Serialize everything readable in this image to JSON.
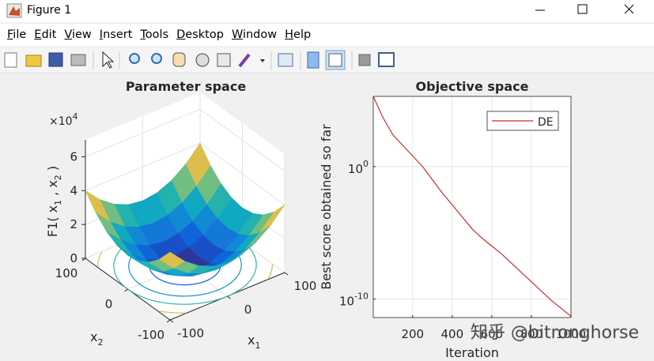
{
  "window": {
    "title": "Figure 1",
    "menu": [
      "File",
      "Edit",
      "View",
      "Insert",
      "Tools",
      "Desktop",
      "Window",
      "Help"
    ]
  },
  "chart_data": [
    {
      "type": "surface3d",
      "title": "Parameter space",
      "xlabel": [
        "x",
        "1"
      ],
      "ylabel": [
        "x",
        "2"
      ],
      "zlabel": [
        "F1( x",
        "1",
        " , x",
        "2",
        " )"
      ],
      "xlim": [
        -100,
        100
      ],
      "ylim": [
        -100,
        100
      ],
      "zlim": [
        0,
        70000
      ],
      "xticks": [
        -100,
        0,
        100
      ],
      "yticks": [
        -100,
        0,
        100
      ],
      "zticks": [
        0,
        {
          "value": 20000,
          "label": "2"
        },
        {
          "value": 40000,
          "label": "4"
        },
        {
          "value": 60000,
          "label": "6"
        }
      ],
      "zscale": [
        "×10",
        "4"
      ],
      "grid": true,
      "x": [
        -100,
        -75,
        -50,
        -25,
        0,
        25,
        50,
        75,
        100
      ],
      "y": [
        -100,
        -75,
        -50,
        -25,
        0,
        25,
        50,
        75,
        100
      ],
      "z": [
        [
          40000,
          31250,
          25000,
          21250,
          20000,
          21250,
          25000,
          31250,
          40000
        ],
        [
          31250,
          22500,
          16250,
          12500,
          11250,
          12500,
          16250,
          22500,
          31250
        ],
        [
          25000,
          16250,
          10000,
          6250,
          5000,
          6250,
          10000,
          16250,
          25000
        ],
        [
          21250,
          12500,
          6250,
          2500,
          1250,
          2500,
          6250,
          12500,
          21250
        ],
        [
          20000,
          11250,
          5000,
          1250,
          0,
          1250,
          5000,
          11250,
          20000
        ],
        [
          21250,
          12500,
          6250,
          2500,
          1250,
          2500,
          6250,
          12500,
          21250
        ],
        [
          25000,
          16250,
          10000,
          6250,
          5000,
          6250,
          10000,
          16250,
          25000
        ],
        [
          31250,
          22500,
          16250,
          12500,
          11250,
          12500,
          16250,
          22500,
          31250
        ],
        [
          40000,
          31250,
          25000,
          21250,
          20000,
          21250,
          25000,
          31250,
          40000
        ]
      ],
      "contour_levels": [
        5000,
        12500,
        20000,
        30000,
        40000
      ],
      "colormap": [
        "#352a87",
        "#0f5cdd",
        "#1481d6",
        "#06a4ca",
        "#2eb7a4",
        "#87bf77",
        "#d1bb59",
        "#fec832",
        "#f9fb0e"
      ]
    },
    {
      "type": "line",
      "title": "Objective space",
      "xlabel": "Iteration",
      "ylabel": "Best score obtained so far",
      "xlim": [
        1,
        1000
      ],
      "ylim": [
        4e-12,
        200000
      ],
      "yscale": "log",
      "grid": true,
      "legend": "northeast",
      "xticks": [
        200,
        400,
        600,
        800,
        1000
      ],
      "yticks": [
        {
          "value": 1e-10,
          "label": "10",
          "exponent": "-10"
        },
        {
          "value": 1,
          "label": "10",
          "exponent": "0"
        }
      ],
      "x": [
        1,
        50,
        100,
        150,
        200,
        250,
        300,
        350,
        400,
        450,
        500,
        550,
        600,
        650,
        700,
        750,
        800,
        850,
        900,
        950,
        1000
      ],
      "series": [
        {
          "name": "DE",
          "color": "#c8322a",
          "values": [
            200000,
            5000,
            250,
            40,
            6.3,
            1,
            0.1,
            0.01,
            0.0013,
            0.00016,
            2e-05,
            4e-06,
            1e-06,
            2.5e-07,
            5e-08,
            1e-08,
            2e-09,
            4e-10,
            8e-11,
            2e-11,
            5e-12
          ]
        }
      ]
    }
  ],
  "watermark": "知乎 @bitronghorse"
}
